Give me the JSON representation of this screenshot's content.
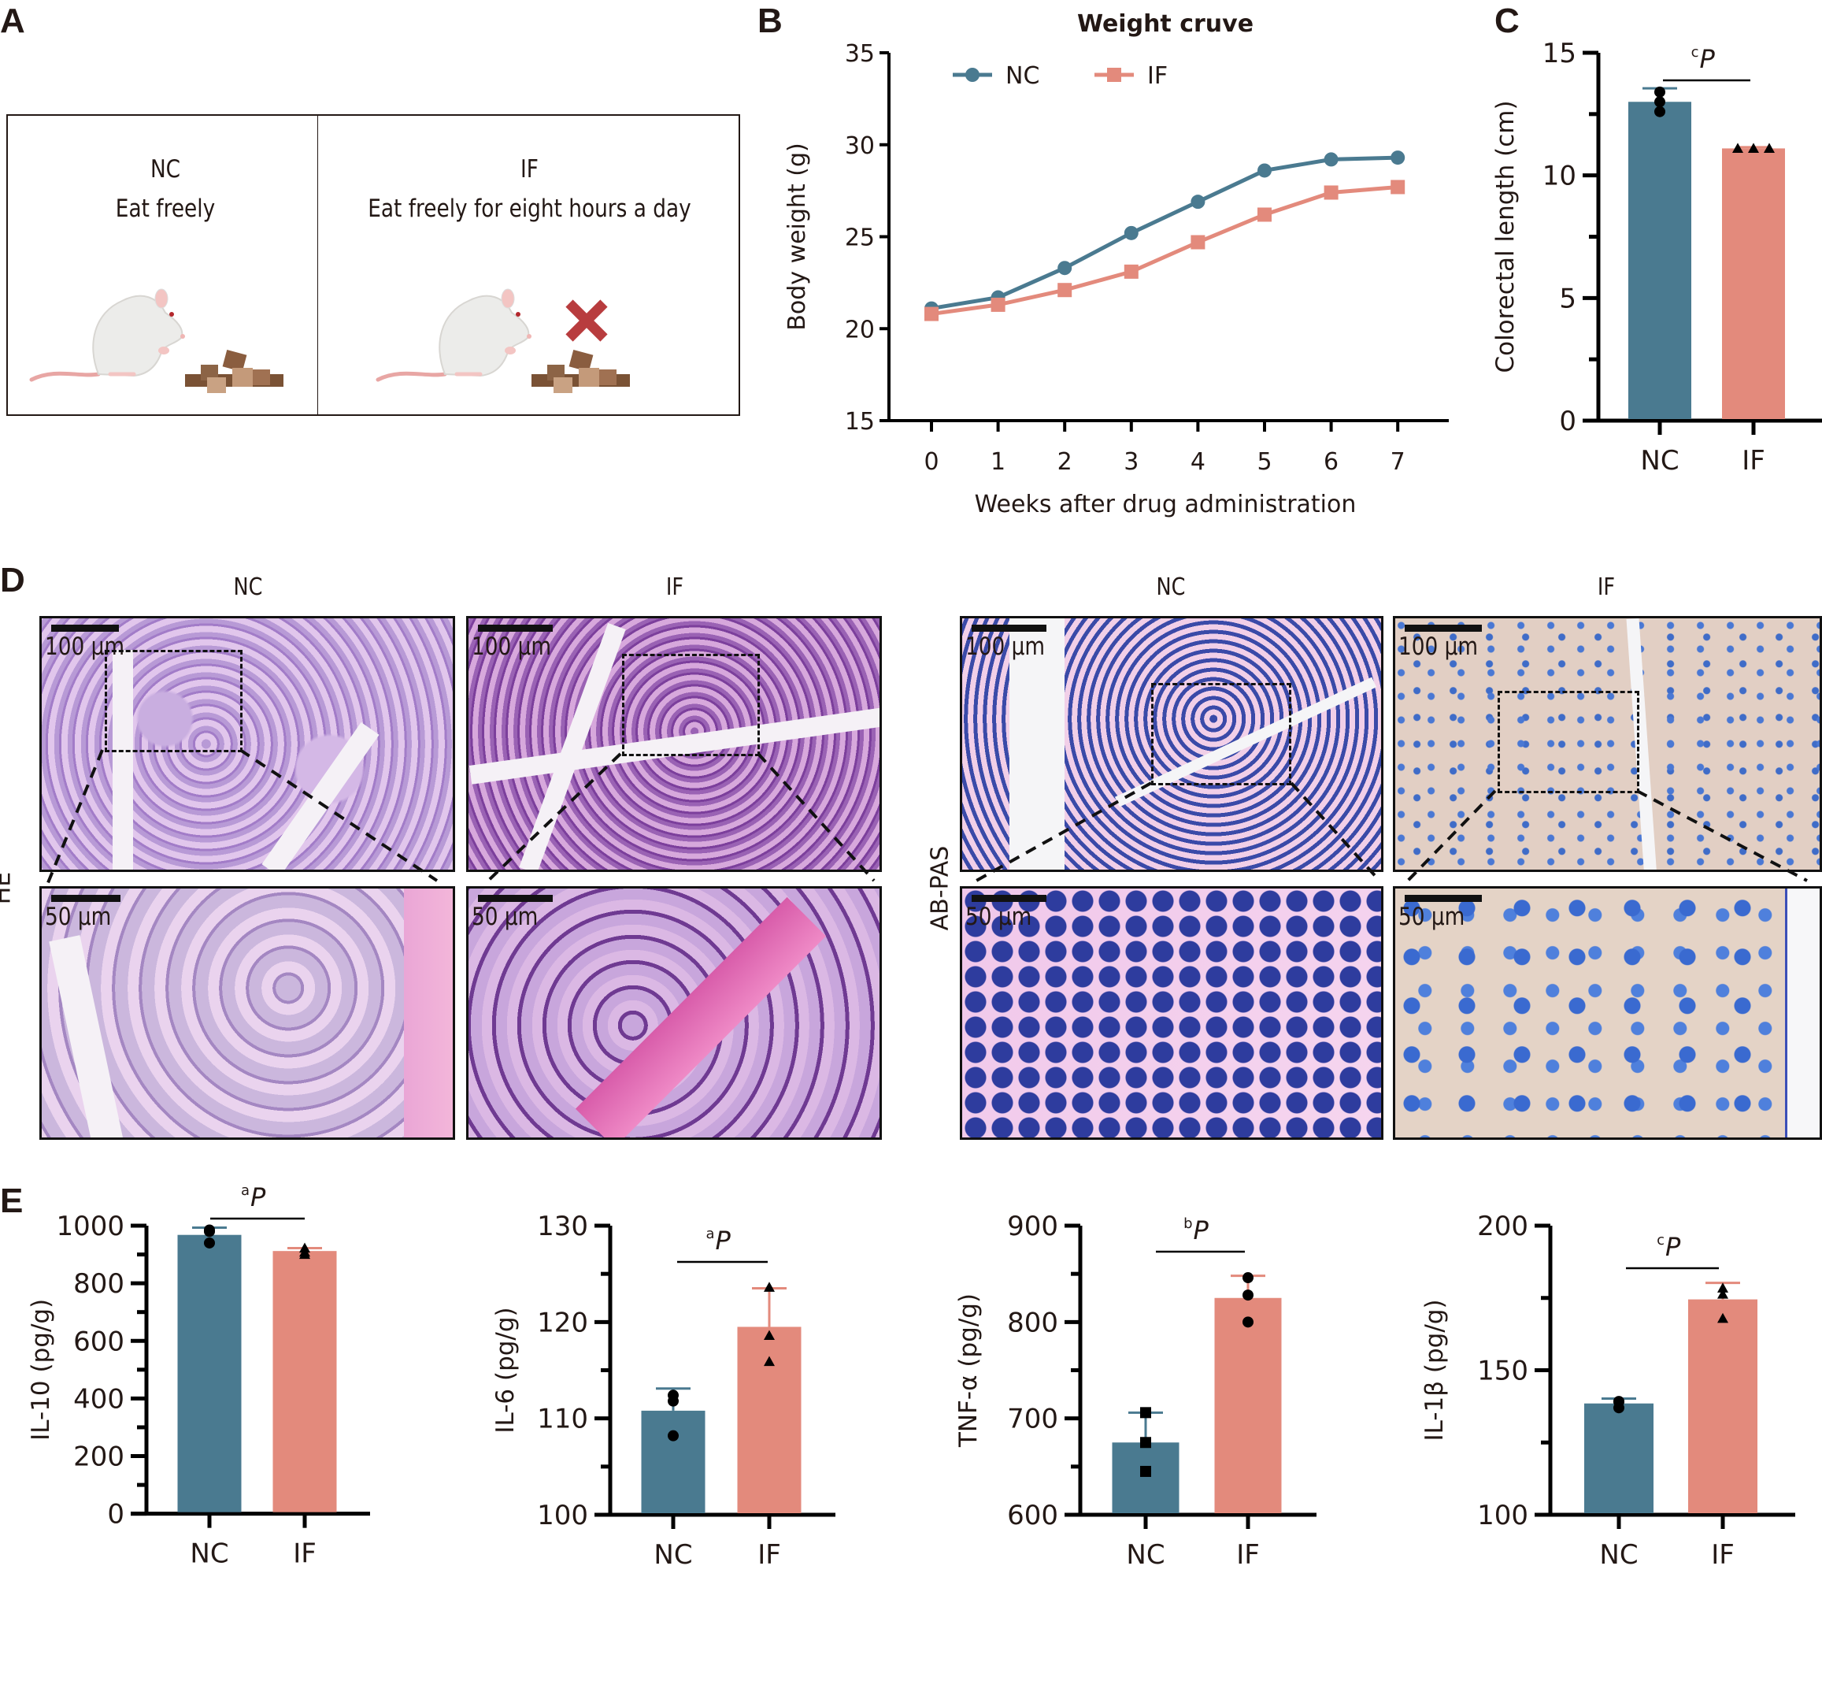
{
  "panels": {
    "A": {
      "letter": "A",
      "left": {
        "group": "NC",
        "desc": "Eat freely"
      },
      "right": {
        "group": "IF",
        "desc": "Eat freely for eight hours a day"
      },
      "icons": [
        "rat-icon",
        "food-pellets-icon",
        "red-cross-icon"
      ],
      "cross_color": "#b83c3e"
    },
    "B": {
      "letter": "B"
    },
    "C": {
      "letter": "C"
    },
    "D": {
      "letter": "D",
      "col_labels": [
        "NC",
        "IF",
        "NC",
        "IF"
      ],
      "row_labels": {
        "he": "HE",
        "abpas": "AB-PAS"
      },
      "scale_top": "100 μm",
      "scale_bottom": "50 μm"
    },
    "E": {
      "letter": "E"
    }
  },
  "colors": {
    "nc": "#4a7a90",
    "if": "#e38a7c",
    "axis": "#000000"
  },
  "chart_data": [
    {
      "id": "B",
      "type": "line",
      "title": "Weight cruve",
      "xlabel": "Weeks after drug administration",
      "ylabel": "Body weight (g)",
      "x": [
        0,
        1,
        2,
        3,
        4,
        5,
        6,
        7
      ],
      "xticks": [
        "0",
        "1",
        "2",
        "3",
        "4",
        "5",
        "6",
        "7"
      ],
      "yticks": [
        "15",
        "20",
        "25",
        "30",
        "35"
      ],
      "ylim": [
        15,
        35
      ],
      "legend": "top-left",
      "series": [
        {
          "name": "NC",
          "marker": "circle",
          "values": [
            21.1,
            21.7,
            23.3,
            25.2,
            26.9,
            28.6,
            29.2,
            29.3
          ]
        },
        {
          "name": "IF",
          "marker": "square",
          "values": [
            20.8,
            21.3,
            22.1,
            23.1,
            24.7,
            26.2,
            27.4,
            27.7
          ]
        }
      ]
    },
    {
      "id": "C",
      "type": "bar",
      "ylabel": "Colorectal length (cm)",
      "categories": [
        "NC",
        "IF"
      ],
      "values": [
        13.0,
        11.1
      ],
      "errors": [
        0.55,
        0.05
      ],
      "points": [
        [
          13.4,
          13.0,
          12.6
        ],
        [
          11.1,
          11.1,
          11.1
        ]
      ],
      "markers": [
        "circle",
        "triangle"
      ],
      "ylim": [
        0,
        15
      ],
      "yticks": [
        "0",
        "5",
        "10",
        "15"
      ],
      "minor_step": 2.5,
      "sig": {
        "sup": "c",
        "text": "P"
      }
    },
    {
      "id": "E1",
      "type": "bar",
      "ylabel": "IL-10 (pg/g)",
      "categories": [
        "NC",
        "IF"
      ],
      "values": [
        968,
        912
      ],
      "errors": [
        25,
        10
      ],
      "points": [
        [
          985,
          980,
          940
        ],
        [
          900,
          922,
          908
        ]
      ],
      "markers": [
        "circle",
        "triangle"
      ],
      "ylim": [
        0,
        1000
      ],
      "yticks": [
        "0",
        "200",
        "400",
        "600",
        "800",
        "1000"
      ],
      "minor_step": 100,
      "sig": {
        "sup": "a",
        "text": "P"
      }
    },
    {
      "id": "E2",
      "type": "bar",
      "ylabel": "IL-6 (pg/g)",
      "categories": [
        "NC",
        "IF"
      ],
      "values": [
        110.8,
        119.5
      ],
      "errors": [
        2.3,
        4.0
      ],
      "points": [
        [
          112.4,
          111.8,
          108.2
        ],
        [
          123.6,
          118.6,
          115.9
        ]
      ],
      "markers": [
        "circle",
        "triangle"
      ],
      "ylim": [
        100,
        130
      ],
      "yticks": [
        "100",
        "110",
        "120",
        "130"
      ],
      "minor_step": 5,
      "sig": {
        "sup": "a",
        "text": "P"
      }
    },
    {
      "id": "E3",
      "type": "bar",
      "ylabel": "TNF-α (pg/g)",
      "categories": [
        "NC",
        "IF"
      ],
      "values": [
        675,
        825
      ],
      "errors": [
        31,
        23
      ],
      "points": [
        [
          706,
          675,
          645
        ],
        [
          846,
          828,
          800
        ]
      ],
      "markers": [
        "square",
        "circle"
      ],
      "ylim": [
        600,
        900
      ],
      "yticks": [
        "600",
        "700",
        "800",
        "900"
      ],
      "minor_step": 50,
      "sig": {
        "sup": "b",
        "text": "P"
      }
    },
    {
      "id": "E4",
      "type": "bar",
      "ylabel": "IL-1β (pg/g)",
      "categories": [
        "NC",
        "IF"
      ],
      "values": [
        138.5,
        174.5
      ],
      "errors": [
        1.7,
        5.7
      ],
      "points": [
        [
          139.2,
          139.1,
          137.0
        ],
        [
          178.4,
          176.3,
          167.9
        ]
      ],
      "markers": [
        "circle",
        "triangle"
      ],
      "ylim": [
        100,
        200
      ],
      "yticks": [
        "100",
        "150",
        "200"
      ],
      "minor_step": 25,
      "sig": {
        "sup": "c",
        "text": "P"
      }
    }
  ]
}
